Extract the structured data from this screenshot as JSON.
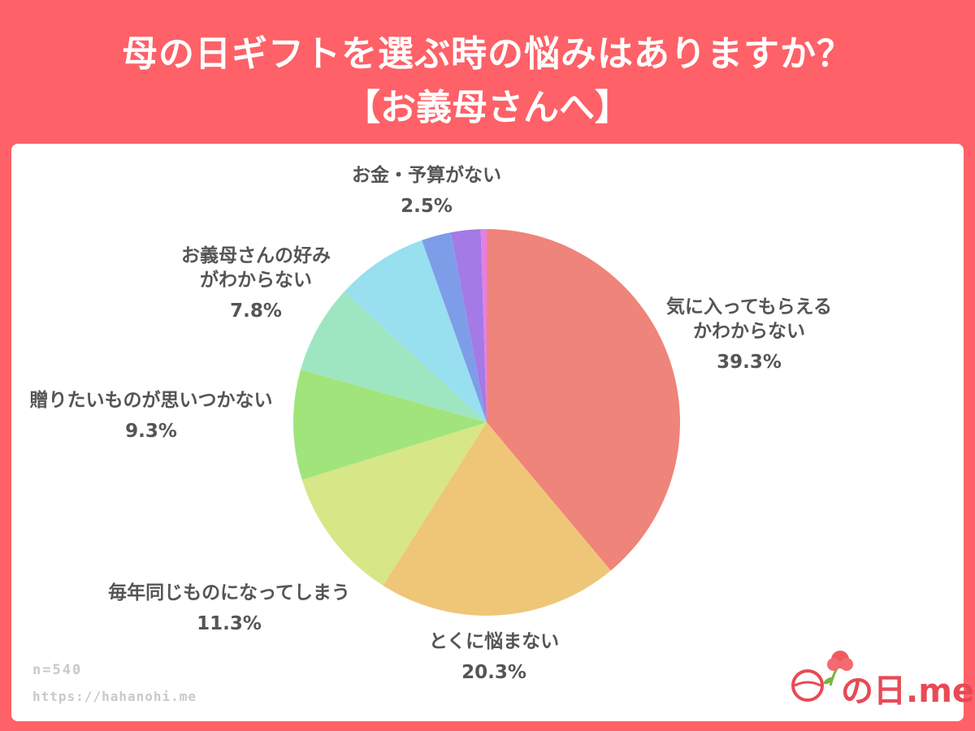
{
  "title": {
    "line1": "母の日ギフトを選ぶ時の悩みはありますか？",
    "line2": "【お義母さんへ】"
  },
  "chart_data": {
    "type": "pie",
    "slices": [
      {
        "label_lines": [
          "気に入ってもらえる",
          "かわからない"
        ],
        "value": 39.3,
        "value_label": "39.3%",
        "color": "#ee847a"
      },
      {
        "label_lines": [
          "とくに悩まない"
        ],
        "value": 20.3,
        "value_label": "20.3%",
        "color": "#efc677"
      },
      {
        "label_lines": [
          "毎年同じものになってしまう"
        ],
        "value": 11.3,
        "value_label": "11.3%",
        "color": "#d7e686"
      },
      {
        "label_lines": [
          "贈りたいものが思いつかない"
        ],
        "value": 9.3,
        "value_label": "9.3%",
        "color": "#a1e47c"
      },
      {
        "label_lines": [],
        "value": 7.5,
        "value_label": "",
        "color": "#9ee6c2"
      },
      {
        "label_lines": [
          "お義母さんの好み",
          "がわからない"
        ],
        "value": 7.8,
        "value_label": "7.8%",
        "color": "#98dff0"
      },
      {
        "label_lines": [],
        "value": 2.5,
        "value_label": "",
        "color": "#7e9de8"
      },
      {
        "label_lines": [
          "お金・予算がない"
        ],
        "value": 2.5,
        "value_label": "2.5%",
        "color": "#a37ae6"
      },
      {
        "label_lines": [],
        "value": 0.5,
        "value_label": "",
        "color": "#e57ee6"
      }
    ]
  },
  "footer": {
    "sample_size": "n=540",
    "url": "https://hahanohi.me"
  },
  "logo": {
    "text": "の日.me",
    "accent_color": "#e84a55"
  }
}
